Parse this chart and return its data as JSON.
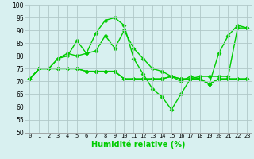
{
  "xlabel": "Humidité relative (%)",
  "x": [
    0,
    1,
    2,
    3,
    4,
    5,
    6,
    7,
    8,
    9,
    10,
    11,
    12,
    13,
    14,
    15,
    16,
    17,
    18,
    19,
    20,
    21,
    22,
    23
  ],
  "series": [
    [
      71,
      75,
      75,
      79,
      80,
      86,
      81,
      89,
      94,
      95,
      92,
      79,
      73,
      67,
      64,
      59,
      65,
      71,
      71,
      69,
      81,
      88,
      92,
      91
    ],
    [
      71,
      75,
      75,
      79,
      81,
      80,
      81,
      82,
      88,
      83,
      90,
      83,
      79,
      75,
      74,
      72,
      71,
      71,
      72,
      72,
      72,
      72,
      91,
      91
    ],
    [
      71,
      75,
      75,
      75,
      75,
      75,
      74,
      74,
      74,
      74,
      71,
      71,
      71,
      71,
      71,
      72,
      71,
      71,
      71,
      69,
      71,
      71,
      71,
      71
    ],
    [
      71,
      75,
      75,
      75,
      75,
      75,
      74,
      74,
      74,
      74,
      71,
      71,
      71,
      71,
      71,
      72,
      70,
      72,
      71,
      69,
      71,
      71,
      71,
      71
    ]
  ],
  "line_color": "#00cc00",
  "marker": "D",
  "marker_size": 2.5,
  "linewidth": 1.0,
  "ylim": [
    50,
    100
  ],
  "yticks": [
    50,
    55,
    60,
    65,
    70,
    75,
    80,
    85,
    90,
    95,
    100
  ],
  "bg_color": "#d8f0f0",
  "grid_color": "#b0c8c8",
  "fig_bg": "#d8f0f0",
  "xlabel_fontsize": 7,
  "tick_fontsize": 5,
  "ytick_fontsize": 5.5
}
